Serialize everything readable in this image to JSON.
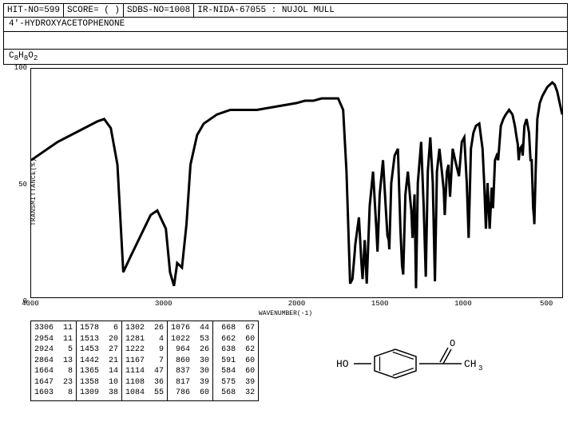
{
  "header": {
    "hit_no": "HIT-NO=599",
    "score": "SCORE=  (  )",
    "sdbs_no": "SDBS-NO=1008",
    "ir": "IR-NIDA-67055 : NUJOL MULL"
  },
  "compound_name": "4'-HYDROXYACETOPHENONE",
  "formula_html": "C<sub>8</sub>H<sub>8</sub>O<sub>2</sub>",
  "chart": {
    "type": "line",
    "ylabel": "TRANSMITTANCE(%)",
    "xlabel": "WAVENUMBER(-1)",
    "ylim": [
      0,
      100
    ],
    "xlim": [
      4000,
      400
    ],
    "yticks": [
      0,
      50,
      100
    ],
    "xticks": [
      4000,
      3000,
      2000,
      1500,
      1000,
      500
    ],
    "line_color": "#000000",
    "background_color": "#ffffff",
    "border_color": "#000000",
    "series": [
      [
        4000,
        60
      ],
      [
        3800,
        68
      ],
      [
        3600,
        74
      ],
      [
        3500,
        77
      ],
      [
        3450,
        78
      ],
      [
        3400,
        74
      ],
      [
        3350,
        58
      ],
      [
        3306,
        11
      ],
      [
        3250,
        18
      ],
      [
        3200,
        24
      ],
      [
        3150,
        30
      ],
      [
        3100,
        36
      ],
      [
        3050,
        38
      ],
      [
        2985,
        30
      ],
      [
        2954,
        11
      ],
      [
        2924,
        5
      ],
      [
        2900,
        15
      ],
      [
        2864,
        13
      ],
      [
        2830,
        32
      ],
      [
        2800,
        58
      ],
      [
        2750,
        71
      ],
      [
        2700,
        76
      ],
      [
        2600,
        80
      ],
      [
        2500,
        82
      ],
      [
        2400,
        82
      ],
      [
        2300,
        82
      ],
      [
        2200,
        83
      ],
      [
        2100,
        84
      ],
      [
        2000,
        85
      ],
      [
        1950,
        86
      ],
      [
        1900,
        86
      ],
      [
        1850,
        87
      ],
      [
        1800,
        87
      ],
      [
        1750,
        87
      ],
      [
        1720,
        82
      ],
      [
        1700,
        55
      ],
      [
        1678,
        6
      ],
      [
        1664,
        8
      ],
      [
        1650,
        20
      ],
      [
        1647,
        23
      ],
      [
        1625,
        35
      ],
      [
        1610,
        15
      ],
      [
        1603,
        8
      ],
      [
        1590,
        25
      ],
      [
        1578,
        6
      ],
      [
        1560,
        40
      ],
      [
        1540,
        55
      ],
      [
        1520,
        30
      ],
      [
        1513,
        20
      ],
      [
        1500,
        45
      ],
      [
        1480,
        60
      ],
      [
        1460,
        35
      ],
      [
        1453,
        27
      ],
      [
        1445,
        25
      ],
      [
        1442,
        21
      ],
      [
        1430,
        50
      ],
      [
        1410,
        62
      ],
      [
        1390,
        65
      ],
      [
        1375,
        30
      ],
      [
        1365,
        14
      ],
      [
        1358,
        10
      ],
      [
        1345,
        45
      ],
      [
        1330,
        55
      ],
      [
        1315,
        42
      ],
      [
        1309,
        38
      ],
      [
        1302,
        26
      ],
      [
        1290,
        45
      ],
      [
        1281,
        4
      ],
      [
        1270,
        50
      ],
      [
        1250,
        68
      ],
      [
        1235,
        40
      ],
      [
        1222,
        9
      ],
      [
        1210,
        55
      ],
      [
        1195,
        70
      ],
      [
        1180,
        50
      ],
      [
        1167,
        7
      ],
      [
        1155,
        55
      ],
      [
        1140,
        65
      ],
      [
        1125,
        55
      ],
      [
        1114,
        47
      ],
      [
        1108,
        36
      ],
      [
        1095,
        55
      ],
      [
        1085,
        58
      ],
      [
        1084,
        55
      ],
      [
        1076,
        44
      ],
      [
        1060,
        65
      ],
      [
        1045,
        60
      ],
      [
        1022,
        53
      ],
      [
        1005,
        68
      ],
      [
        990,
        70
      ],
      [
        975,
        50
      ],
      [
        964,
        26
      ],
      [
        950,
        65
      ],
      [
        935,
        72
      ],
      [
        920,
        75
      ],
      [
        900,
        76
      ],
      [
        880,
        65
      ],
      [
        870,
        50
      ],
      [
        860,
        30
      ],
      [
        850,
        50
      ],
      [
        837,
        30
      ],
      [
        825,
        48
      ],
      [
        817,
        39
      ],
      [
        805,
        60
      ],
      [
        795,
        62
      ],
      [
        786,
        60
      ],
      [
        770,
        75
      ],
      [
        755,
        78
      ],
      [
        740,
        80
      ],
      [
        720,
        82
      ],
      [
        700,
        80
      ],
      [
        685,
        75
      ],
      [
        675,
        70
      ],
      [
        668,
        67
      ],
      [
        662,
        60
      ],
      [
        655,
        65
      ],
      [
        645,
        66
      ],
      [
        638,
        62
      ],
      [
        628,
        75
      ],
      [
        615,
        78
      ],
      [
        600,
        72
      ],
      [
        591,
        60
      ],
      [
        584,
        60
      ],
      [
        575,
        39
      ],
      [
        570,
        35
      ],
      [
        568,
        32
      ],
      [
        560,
        55
      ],
      [
        550,
        78
      ],
      [
        535,
        85
      ],
      [
        520,
        88
      ],
      [
        505,
        90
      ],
      [
        490,
        92
      ],
      [
        475,
        93
      ],
      [
        460,
        94
      ],
      [
        445,
        93
      ],
      [
        430,
        90
      ],
      [
        415,
        85
      ],
      [
        400,
        80
      ]
    ]
  },
  "peak_table": {
    "columns": [
      [
        [
          3306,
          11
        ],
        [
          2954,
          11
        ],
        [
          2924,
          5
        ],
        [
          2864,
          13
        ],
        [
          1664,
          8
        ],
        [
          1647,
          23
        ],
        [
          1603,
          8
        ]
      ],
      [
        [
          1578,
          6
        ],
        [
          1513,
          20
        ],
        [
          1453,
          27
        ],
        [
          1442,
          21
        ],
        [
          1365,
          14
        ],
        [
          1358,
          10
        ],
        [
          1309,
          38
        ]
      ],
      [
        [
          1302,
          26
        ],
        [
          1281,
          4
        ],
        [
          1222,
          9
        ],
        [
          1167,
          7
        ],
        [
          1114,
          47
        ],
        [
          1108,
          36
        ],
        [
          1084,
          55
        ]
      ],
      [
        [
          1076,
          44
        ],
        [
          1022,
          53
        ],
        [
          964,
          26
        ],
        [
          860,
          30
        ],
        [
          837,
          30
        ],
        [
          817,
          39
        ],
        [
          786,
          60
        ]
      ],
      [
        [
          668,
          67
        ],
        [
          662,
          60
        ],
        [
          638,
          62
        ],
        [
          591,
          60
        ],
        [
          584,
          60
        ],
        [
          575,
          39
        ],
        [
          568,
          32
        ]
      ]
    ]
  },
  "structure": {
    "left_label": "HO",
    "right_label": "CH",
    "right_sub": "3"
  }
}
